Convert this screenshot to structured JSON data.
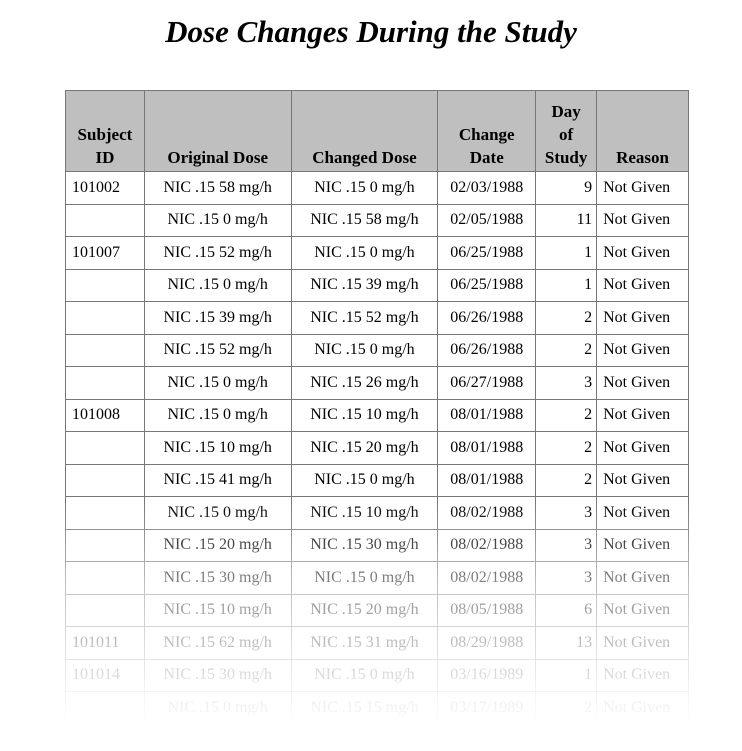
{
  "title": "Dose Changes During the Study",
  "columns": [
    "Subject ID",
    "Original Dose",
    "Changed Dose",
    "Change Date",
    "Day of Study",
    "Reason"
  ],
  "rows": [
    [
      "101002",
      "NIC .15 58 mg/h",
      "NIC .15 0 mg/h",
      "02/03/1988",
      "9",
      "Not Given"
    ],
    [
      "",
      "NIC .15 0 mg/h",
      "NIC .15 58 mg/h",
      "02/05/1988",
      "11",
      "Not Given"
    ],
    [
      "101007",
      "NIC .15 52 mg/h",
      "NIC .15 0 mg/h",
      "06/25/1988",
      "1",
      "Not Given"
    ],
    [
      "",
      "NIC .15 0 mg/h",
      "NIC .15 39 mg/h",
      "06/25/1988",
      "1",
      "Not Given"
    ],
    [
      "",
      "NIC .15 39 mg/h",
      "NIC .15 52 mg/h",
      "06/26/1988",
      "2",
      "Not Given"
    ],
    [
      "",
      "NIC .15 52 mg/h",
      "NIC .15 0 mg/h",
      "06/26/1988",
      "2",
      "Not Given"
    ],
    [
      "",
      "NIC .15 0 mg/h",
      "NIC .15 26 mg/h",
      "06/27/1988",
      "3",
      "Not Given"
    ],
    [
      "101008",
      "NIC .15 0 mg/h",
      "NIC .15 10 mg/h",
      "08/01/1988",
      "2",
      "Not Given"
    ],
    [
      "",
      "NIC .15 10 mg/h",
      "NIC .15 20 mg/h",
      "08/01/1988",
      "2",
      "Not Given"
    ],
    [
      "",
      "NIC .15 41 mg/h",
      "NIC .15 0 mg/h",
      "08/01/1988",
      "2",
      "Not Given"
    ],
    [
      "",
      "NIC .15 0 mg/h",
      "NIC .15 10 mg/h",
      "08/02/1988",
      "3",
      "Not Given"
    ],
    [
      "",
      "NIC .15 20 mg/h",
      "NIC .15 30 mg/h",
      "08/02/1988",
      "3",
      "Not Given"
    ],
    [
      "",
      "NIC .15 30 mg/h",
      "NIC .15 0 mg/h",
      "08/02/1988",
      "3",
      "Not Given"
    ],
    [
      "",
      "NIC .15 10 mg/h",
      "NIC .15 20 mg/h",
      "08/05/1988",
      "6",
      "Not Given"
    ],
    [
      "101011",
      "NIC .15 62 mg/h",
      "NIC .15 31 mg/h",
      "08/29/1988",
      "13",
      "Not Given"
    ],
    [
      "101014",
      "NIC .15 30 mg/h",
      "NIC .15 0 mg/h",
      "03/16/1989",
      "1",
      "Not Given"
    ],
    [
      "",
      "NIC .15 0 mg/h",
      "NIC .15 15 mg/h",
      "03/17/1989",
      "2",
      "Not Given"
    ]
  ]
}
